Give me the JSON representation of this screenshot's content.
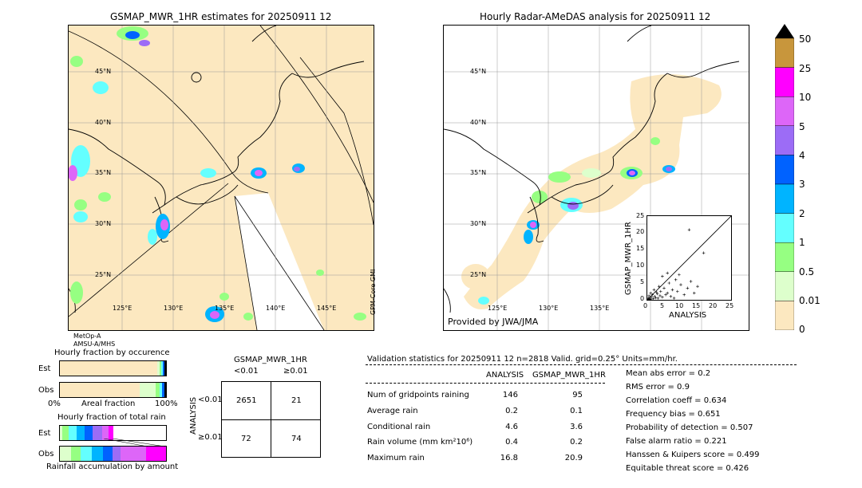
{
  "left_map": {
    "title": "GSMAP_MWR_1HR estimates for 20250911 12",
    "lat_labels": [
      "45°N",
      "40°N",
      "35°N",
      "30°N",
      "25°N"
    ],
    "lon_labels": [
      "125°E",
      "130°E",
      "135°E",
      "140°E",
      "145°E"
    ],
    "side_label": "GPM-Core GMI",
    "satellites": [
      "MetOp-A",
      "AMSU-A/MHS"
    ]
  },
  "right_map": {
    "title": "Hourly Radar-AMeDAS analysis for 20250911 12",
    "lat_labels": [
      "45°N",
      "40°N",
      "35°N",
      "30°N",
      "25°N"
    ],
    "lon_labels": [
      "125°E",
      "130°E",
      "135°E"
    ],
    "credit": "Provided by JWA/JMA"
  },
  "colorbar": {
    "labels": [
      "50",
      "25",
      "10",
      "5",
      "4",
      "3",
      "2",
      "1",
      "0.5",
      "0.01",
      "0"
    ],
    "colors": [
      "#c8963c",
      "#ff00ff",
      "#dd66f8",
      "#9c6cf6",
      "#0062ff",
      "#00b4ff",
      "#64ffff",
      "#96ff82",
      "#ddffcc",
      "#fce8c0"
    ]
  },
  "scatter": {
    "xlabel": "ANALYSIS",
    "ylabel": "GSMAP_MWR_1HR",
    "ticks": [
      "0",
      "5",
      "10",
      "15",
      "20",
      "25"
    ]
  },
  "fraction": {
    "title_occ": "Hourly fraction by occurence",
    "title_rain": "Hourly fraction of total rain",
    "est": "Est",
    "obs": "Obs",
    "x0": "0%",
    "xmid": "Areal fraction",
    "x1": "100%",
    "foot": "Rainfall accumulation by amount"
  },
  "contingency": {
    "title": "GSMAP_MWR_1HR",
    "col1": "<0.01",
    "col2": "≥0.01",
    "row1": "<0.01",
    "row2": "≥0.01",
    "side": "ANALYSIS",
    "cells": [
      "2651",
      "21",
      "72",
      "74"
    ]
  },
  "stats": {
    "header": "Validation statistics for 20250911 12  n=2818 Valid. grid=0.25° Units=mm/hr.",
    "col_a": "ANALYSIS",
    "col_b": "GSMAP_MWR_1HR",
    "rows": [
      {
        "label": "Num of gridpoints raining",
        "a": "146",
        "b": "95"
      },
      {
        "label": "Average rain",
        "a": "0.2",
        "b": "0.1"
      },
      {
        "label": "Conditional rain",
        "a": "4.6",
        "b": "3.6"
      },
      {
        "label": "Rain volume (mm km²10⁶)",
        "a": "0.4",
        "b": "0.2"
      },
      {
        "label": "Maximum rain",
        "a": "16.8",
        "b": "20.9"
      }
    ],
    "scores": [
      "Mean abs error =    0.2",
      "RMS error =    0.9",
      "Correlation coeff =  0.634",
      "Frequency bias =  0.651",
      "Probability of detection =  0.507",
      "False alarm ratio =  0.221",
      "Hanssen & Kuipers score =  0.499",
      "Equitable threat score =  0.426"
    ]
  },
  "chart_data": [
    {
      "type": "scatter",
      "title": "",
      "xlabel": "ANALYSIS",
      "ylabel": "GSMAP_MWR_1HR",
      "xlim": [
        0,
        25
      ],
      "ylim": [
        0,
        25
      ],
      "points": [
        [
          0.3,
          0.5
        ],
        [
          0.5,
          1.2
        ],
        [
          0.8,
          0.3
        ],
        [
          1.0,
          2.0
        ],
        [
          1.2,
          0.8
        ],
        [
          1.5,
          1.5
        ],
        [
          1.8,
          0.4
        ],
        [
          2.0,
          3.0
        ],
        [
          2.2,
          1.0
        ],
        [
          2.5,
          0.6
        ],
        [
          2.8,
          2.2
        ],
        [
          3.0,
          1.8
        ],
        [
          3.2,
          0.5
        ],
        [
          3.5,
          4.0
        ],
        [
          3.8,
          1.2
        ],
        [
          4.0,
          2.5
        ],
        [
          4.5,
          0.8
        ],
        [
          5.0,
          3.5
        ],
        [
          5.5,
          1.5
        ],
        [
          6.0,
          2.0
        ],
        [
          6.5,
          5.0
        ],
        [
          7.0,
          1.0
        ],
        [
          7.5,
          3.0
        ],
        [
          8.0,
          0.5
        ],
        [
          8.5,
          6.0
        ],
        [
          9.0,
          2.5
        ],
        [
          10.0,
          4.5
        ],
        [
          11.0,
          1.5
        ],
        [
          12.0,
          3.5
        ],
        [
          13.0,
          5.5
        ],
        [
          14.0,
          2.0
        ],
        [
          15.0,
          4.0
        ],
        [
          12.5,
          20.9
        ],
        [
          16.8,
          14.0
        ],
        [
          6.0,
          8.0
        ],
        [
          4.5,
          7.0
        ],
        [
          9.5,
          7.5
        ],
        [
          0.2,
          0.2
        ],
        [
          0.6,
          0.1
        ],
        [
          1.1,
          0.2
        ]
      ]
    },
    {
      "type": "bar",
      "title": "Hourly fraction by occurence",
      "categories": [
        "Est",
        "Obs"
      ],
      "series": [
        {
          "name": "0",
          "values": [
            0.966,
            0.948
          ]
        },
        {
          "name": "0.01",
          "values": [
            0.01,
            0.02
          ]
        },
        {
          "name": "0.5",
          "values": [
            0.008,
            0.012
          ]
        },
        {
          "name": "1",
          "values": [
            0.006,
            0.01
          ]
        }
      ]
    }
  ]
}
